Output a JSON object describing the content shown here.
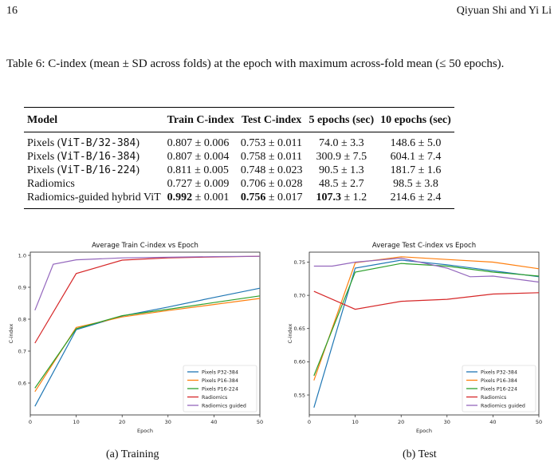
{
  "header": {
    "page_number": "16",
    "authors": "Qiyuan Shi and Yi Li"
  },
  "caption": "Table 6: C-index (mean ± SD across folds) at the epoch with maximum across-fold mean (≤ 50 epochs).",
  "table": {
    "columns": [
      "Model",
      "Train C-index",
      "Test C-index",
      "5 epochs (sec)",
      "10 epochs (sec)"
    ],
    "rows": [
      {
        "model_prefix": "Pixels (",
        "model_code": "ViT-B/32-384",
        "model_suffix": ")",
        "train": "0.807",
        "train_sd": " ± 0.006",
        "test": "0.753",
        "test_sd": " ± 0.011",
        "e5": "74.0",
        "e5_sd": " ± 3.3",
        "e10": "148.6 ± 5.0"
      },
      {
        "model_prefix": "Pixels (",
        "model_code": "ViT-B/16-384",
        "model_suffix": ")",
        "train": "0.807",
        "train_sd": " ± 0.004",
        "test": "0.758",
        "test_sd": " ± 0.011",
        "e5": "300.9",
        "e5_sd": " ± 7.5",
        "e10": "604.1 ± 7.4"
      },
      {
        "model_prefix": "Pixels (",
        "model_code": "ViT-B/16-224",
        "model_suffix": ")",
        "train": "0.811",
        "train_sd": " ± 0.005",
        "test": "0.748",
        "test_sd": " ± 0.023",
        "e5": "90.5",
        "e5_sd": " ± 1.3",
        "e10": "181.7 ± 1.6"
      },
      {
        "model_prefix": "Radiomics",
        "model_code": "",
        "model_suffix": "",
        "train": "0.727",
        "train_sd": " ± 0.009",
        "test": "0.706",
        "test_sd": " ± 0.028",
        "e5": "48.5",
        "e5_sd": " ± 2.7",
        "e10": "98.5 ± 3.8"
      },
      {
        "model_prefix": "Radiomics-guided hybrid ViT",
        "model_code": "",
        "model_suffix": "",
        "train": "0.992",
        "train_sd": " ± 0.001",
        "test": "0.756",
        "test_sd": " ± 0.017",
        "e5": "107.3",
        "e5_sd": " ± 1.2",
        "e10": "214.6 ± 2.4",
        "bold": [
          "train",
          "test",
          "e5"
        ]
      }
    ]
  },
  "subcaptions": {
    "a": "(a) Training",
    "b": "(b) Test"
  },
  "chart_data": [
    {
      "type": "line",
      "title": "Average Train C-index vs Epoch",
      "xlabel": "Epoch",
      "ylabel": "C-index",
      "xlim": [
        0,
        50
      ],
      "ylim": [
        0.5,
        1.01
      ],
      "xticks": [
        0,
        10,
        20,
        30,
        40,
        50
      ],
      "yticks": [
        0.6,
        0.7,
        0.8,
        0.9,
        1.0
      ],
      "ytick_labels": [
        "0.6",
        "0.7",
        "0.8",
        "0.9",
        "1.0"
      ],
      "legend_position": "bottom-right",
      "grid": false,
      "series": [
        {
          "name": "Pixels P32-384",
          "color": "#1f77b4",
          "x": [
            1,
            10,
            20,
            30,
            40,
            50
          ],
          "y": [
            0.527,
            0.767,
            0.81,
            0.838,
            0.868,
            0.897
          ]
        },
        {
          "name": "Pixels P16-384",
          "color": "#ff7f0e",
          "x": [
            1,
            10,
            20,
            30,
            40,
            50
          ],
          "y": [
            0.573,
            0.774,
            0.807,
            0.827,
            0.846,
            0.865
          ]
        },
        {
          "name": "Pixels P16-224",
          "color": "#2ca02c",
          "x": [
            1,
            10,
            20,
            30,
            40,
            50
          ],
          "y": [
            0.584,
            0.77,
            0.811,
            0.831,
            0.852,
            0.873
          ]
        },
        {
          "name": "Radiomics",
          "color": "#d62728",
          "x": [
            1,
            10,
            20,
            30,
            40,
            50
          ],
          "y": [
            0.725,
            0.943,
            0.985,
            0.992,
            0.995,
            0.997
          ]
        },
        {
          "name": "Radiomics guided",
          "color": "#9467bd",
          "x": [
            1,
            5,
            10,
            20,
            30,
            40,
            50
          ],
          "y": [
            0.828,
            0.972,
            0.986,
            0.992,
            0.994,
            0.996,
            0.997
          ]
        }
      ]
    },
    {
      "type": "line",
      "title": "Average Test C-index vs Epoch",
      "xlabel": "Epoch",
      "ylabel": "C-index",
      "xlim": [
        0,
        50
      ],
      "ylim": [
        0.52,
        0.765
      ],
      "xticks": [
        0,
        10,
        20,
        30,
        40,
        50
      ],
      "yticks": [
        0.55,
        0.6,
        0.65,
        0.7,
        0.75
      ],
      "ytick_labels": [
        "0.55",
        "0.60",
        "0.65",
        "0.70",
        "0.75"
      ],
      "legend_position": "bottom-right",
      "grid": false,
      "series": [
        {
          "name": "Pixels P32-384",
          "color": "#1f77b4",
          "x": [
            1,
            10,
            20,
            30,
            40,
            50
          ],
          "y": [
            0.531,
            0.741,
            0.753,
            0.746,
            0.737,
            0.728
          ]
        },
        {
          "name": "Pixels P16-384",
          "color": "#ff7f0e",
          "x": [
            1,
            10,
            20,
            30,
            40,
            50
          ],
          "y": [
            0.572,
            0.749,
            0.758,
            0.754,
            0.75,
            0.74
          ]
        },
        {
          "name": "Pixels P16-224",
          "color": "#2ca02c",
          "x": [
            1,
            10,
            20,
            30,
            40,
            50
          ],
          "y": [
            0.579,
            0.735,
            0.748,
            0.744,
            0.735,
            0.729
          ]
        },
        {
          "name": "Radiomics",
          "color": "#d62728",
          "x": [
            1,
            10,
            20,
            30,
            40,
            50
          ],
          "y": [
            0.706,
            0.679,
            0.691,
            0.694,
            0.702,
            0.704
          ]
        },
        {
          "name": "Radiomics guided",
          "color": "#9467bd",
          "x": [
            1,
            5,
            10,
            20,
            30,
            35,
            40,
            50
          ],
          "y": [
            0.744,
            0.744,
            0.75,
            0.756,
            0.741,
            0.728,
            0.729,
            0.72
          ]
        }
      ]
    }
  ]
}
